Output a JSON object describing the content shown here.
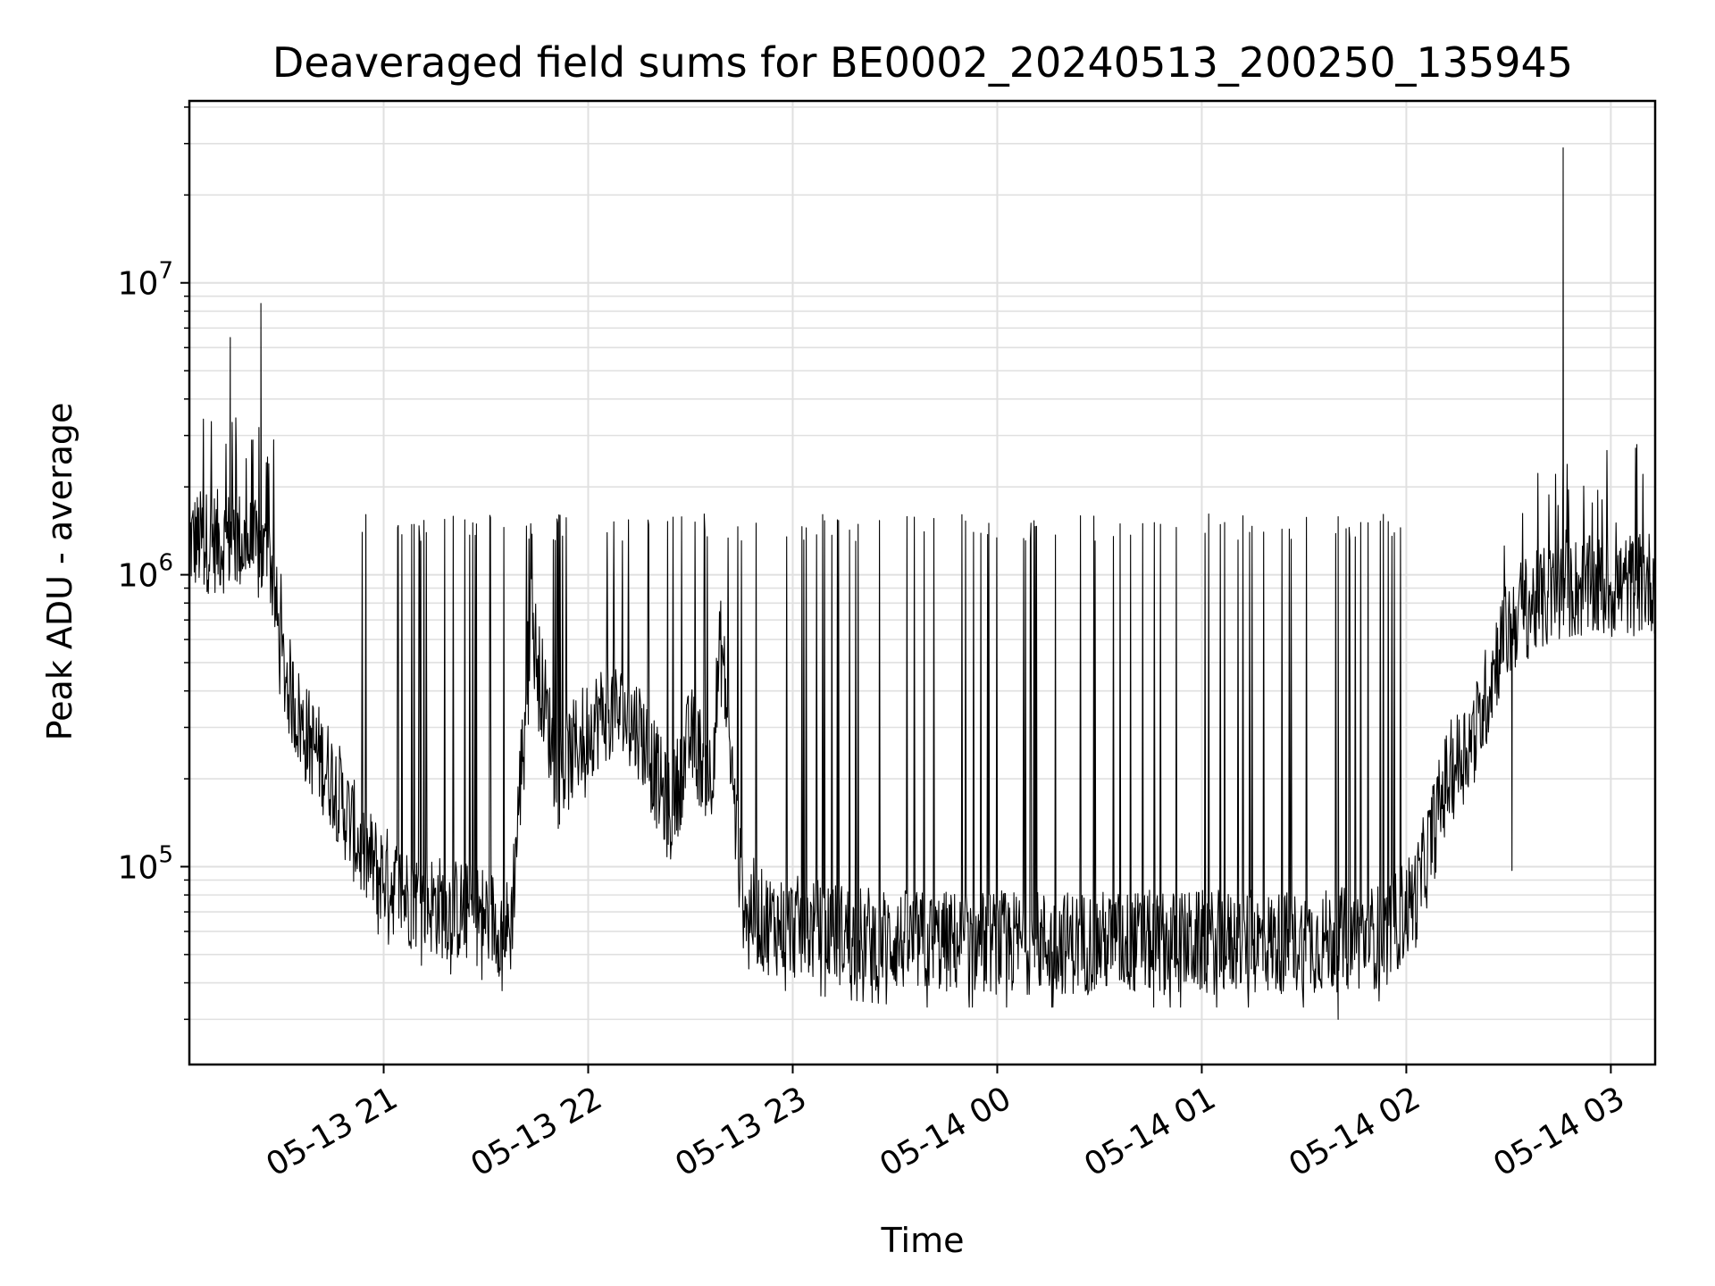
{
  "chart_data": {
    "type": "line",
    "title": "Deaveraged field sums for BE0002_20240513_200250_135945",
    "xlabel": "Time",
    "ylabel": "Peak ADU - average",
    "x_axis": {
      "type": "time",
      "range": [
        "2024-05-13 20:03",
        "2024-05-14 03:13"
      ],
      "ticks": [
        "05-13 21",
        "05-13 22",
        "05-13 23",
        "05-14 00",
        "05-14 01",
        "05-14 02",
        "05-14 03"
      ],
      "tick_hours": [
        21,
        22,
        23,
        24,
        25,
        26,
        27
      ]
    },
    "y_axis": {
      "scale": "log",
      "range": [
        21000,
        42000000
      ],
      "major_ticks": [
        {
          "base": "10",
          "exp": "5",
          "value": 100000
        },
        {
          "base": "10",
          "exp": "6",
          "value": 1000000
        },
        {
          "base": "10",
          "exp": "7",
          "value": 10000000
        }
      ]
    },
    "grid": true,
    "line_color": "#000000",
    "series_profile": {
      "hours": [
        20.05,
        20.15,
        20.3,
        20.45,
        20.5,
        20.6,
        20.75,
        20.9,
        21.1,
        21.3,
        21.5,
        21.62,
        21.72,
        21.85,
        22.0,
        22.1,
        22.25,
        22.4,
        22.5,
        22.6,
        22.65,
        22.75,
        22.85,
        23.0,
        23.3,
        23.6,
        24.0,
        24.5,
        25.0,
        25.5,
        25.9,
        26.05,
        26.2,
        26.35,
        26.45,
        26.55,
        26.8,
        27.0,
        27.2
      ],
      "baseline": [
        1300000,
        1300000,
        1300000,
        1100000,
        500000,
        300000,
        200000,
        110000,
        80000,
        72000,
        68000,
        60000,
        700000,
        200000,
        300000,
        350000,
        300000,
        150000,
        280000,
        200000,
        600000,
        80000,
        65000,
        62000,
        58000,
        55000,
        55000,
        55000,
        55000,
        55000,
        58000,
        80000,
        200000,
        300000,
        550000,
        750000,
        900000,
        900000,
        950000
      ]
    },
    "spikes": [
      {
        "time": "2024-05-13 20:15",
        "value": 6500000
      },
      {
        "time": "2024-05-13 20:24",
        "value": 8500000
      },
      {
        "time": "2024-05-14 02:46",
        "value": 29000000
      }
    ],
    "dips": [
      {
        "time": "2024-05-14 01:40",
        "value": 30000
      },
      {
        "time": "2024-05-14 02:31",
        "value": 97000
      }
    ]
  }
}
